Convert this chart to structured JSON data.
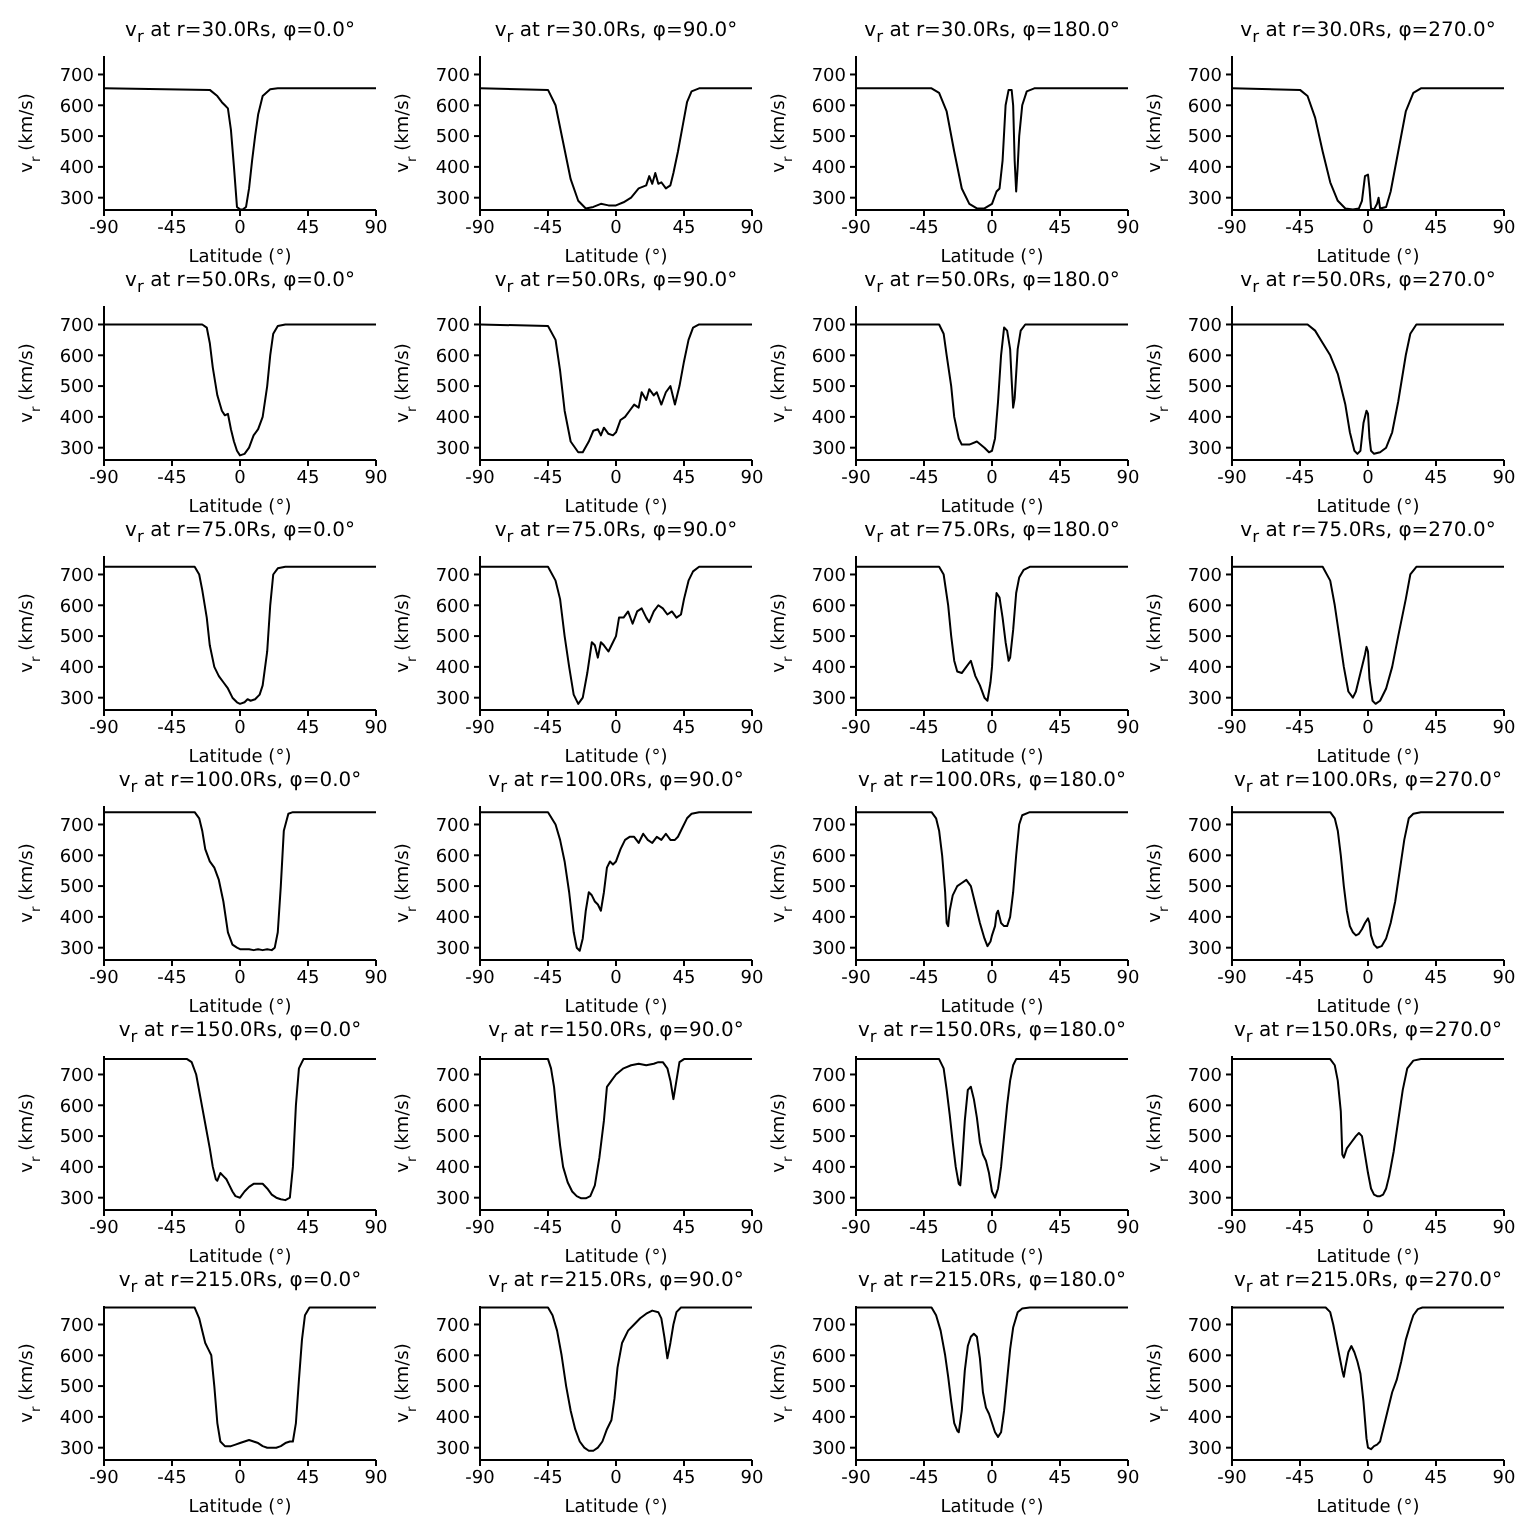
{
  "chart_data": [
    {
      "type": "line",
      "title": "v$_{r}$ at r=30.0Rs, φ=0.0°",
      "xlabel": "Latitude (°)",
      "ylabel": "v$_{r}$ (km/s)",
      "color": "#000000",
      "xlim": [
        -90,
        90
      ],
      "xticks": [
        -90,
        -45,
        0,
        45,
        90
      ],
      "ylim": [
        260,
        760
      ],
      "yticks": [
        300,
        400,
        500,
        600,
        700
      ],
      "x": [
        -90,
        -20,
        -15,
        -12,
        -10,
        -8,
        -6,
        -4,
        -2,
        0,
        2,
        4,
        6,
        8,
        10,
        12,
        15,
        20,
        25,
        90
      ],
      "values": [
        655,
        650,
        630,
        610,
        600,
        590,
        520,
        400,
        270,
        262,
        262,
        270,
        330,
        420,
        500,
        570,
        630,
        652,
        655,
        655
      ]
    },
    {
      "type": "line",
      "title": "v$_{r}$ at r=30.0Rs, φ=90.0°",
      "xlabel": "Latitude (°)",
      "ylabel": "v$_{r}$ (km/s)",
      "color": "#000000",
      "xlim": [
        -90,
        90
      ],
      "xticks": [
        -90,
        -45,
        0,
        45,
        90
      ],
      "ylim": [
        260,
        760
      ],
      "yticks": [
        300,
        400,
        500,
        600,
        700
      ],
      "x": [
        -90,
        -45,
        -40,
        -35,
        -30,
        -25,
        -20,
        -15,
        -10,
        -5,
        0,
        5,
        10,
        15,
        20,
        22,
        24,
        26,
        28,
        30,
        33,
        36,
        38,
        41,
        44,
        47,
        50,
        55,
        90
      ],
      "values": [
        655,
        650,
        600,
        480,
        360,
        290,
        265,
        270,
        280,
        275,
        275,
        285,
        300,
        330,
        340,
        370,
        345,
        380,
        345,
        350,
        330,
        340,
        380,
        450,
        530,
        610,
        645,
        655,
        655
      ]
    },
    {
      "type": "line",
      "title": "v$_{r}$ at r=30.0Rs, φ=180.0°",
      "xlabel": "Latitude (°)",
      "ylabel": "v$_{r}$ (km/s)",
      "color": "#000000",
      "xlim": [
        -90,
        90
      ],
      "xticks": [
        -90,
        -45,
        0,
        45,
        90
      ],
      "ylim": [
        260,
        760
      ],
      "yticks": [
        300,
        400,
        500,
        600,
        700
      ],
      "x": [
        -90,
        -40,
        -35,
        -30,
        -25,
        -20,
        -15,
        -10,
        -5,
        0,
        3,
        5,
        7,
        9,
        11,
        13,
        14,
        15,
        16,
        17,
        18,
        20,
        23,
        28,
        90
      ],
      "values": [
        655,
        655,
        640,
        580,
        450,
        330,
        280,
        265,
        265,
        280,
        320,
        330,
        420,
        600,
        650,
        650,
        600,
        420,
        320,
        400,
        500,
        600,
        645,
        655,
        655
      ]
    },
    {
      "type": "line",
      "title": "v$_{r}$ at r=30.0Rs, φ=270.0°",
      "xlabel": "Latitude (°)",
      "ylabel": "v$_{r}$ (km/s)",
      "color": "#000000",
      "xlim": [
        -90,
        90
      ],
      "xticks": [
        -90,
        -45,
        0,
        45,
        90
      ],
      "ylim": [
        260,
        760
      ],
      "yticks": [
        300,
        400,
        500,
        600,
        700
      ],
      "x": [
        -90,
        -45,
        -40,
        -35,
        -30,
        -25,
        -20,
        -15,
        -10,
        -6,
        -4,
        -2,
        0,
        1,
        2,
        4,
        6,
        7,
        8,
        12,
        15,
        20,
        25,
        30,
        35,
        90
      ],
      "values": [
        655,
        650,
        630,
        560,
        450,
        350,
        290,
        265,
        262,
        265,
        290,
        370,
        375,
        330,
        265,
        262,
        280,
        300,
        265,
        270,
        320,
        450,
        580,
        640,
        655,
        655
      ]
    },
    {
      "type": "line",
      "title": "v$_{r}$ at r=50.0Rs, φ=0.0°",
      "xlabel": "Latitude (°)",
      "ylabel": "v$_{r}$ (km/s)",
      "color": "#000000",
      "xlim": [
        -90,
        90
      ],
      "xticks": [
        -90,
        -45,
        0,
        45,
        90
      ],
      "ylim": [
        260,
        760
      ],
      "yticks": [
        300,
        400,
        500,
        600,
        700
      ],
      "x": [
        -90,
        -25,
        -22,
        -20,
        -18,
        -15,
        -12,
        -10,
        -8,
        -6,
        -4,
        -2,
        0,
        3,
        6,
        9,
        12,
        15,
        18,
        20,
        22,
        25,
        30,
        90
      ],
      "values": [
        700,
        700,
        690,
        640,
        560,
        470,
        420,
        405,
        410,
        360,
        320,
        290,
        275,
        280,
        300,
        340,
        360,
        400,
        500,
        600,
        670,
        695,
        700,
        700
      ]
    },
    {
      "type": "line",
      "title": "v$_{r}$ at r=50.0Rs, φ=90.0°",
      "xlabel": "Latitude (°)",
      "ylabel": "v$_{r}$ (km/s)",
      "color": "#000000",
      "xlim": [
        -90,
        90
      ],
      "xticks": [
        -90,
        -45,
        0,
        45,
        90
      ],
      "ylim": [
        260,
        760
      ],
      "yticks": [
        300,
        400,
        500,
        600,
        700
      ],
      "x": [
        -90,
        -45,
        -40,
        -37,
        -34,
        -30,
        -25,
        -22,
        -18,
        -15,
        -12,
        -10,
        -8,
        -5,
        -2,
        0,
        3,
        6,
        9,
        12,
        15,
        17,
        20,
        22,
        25,
        27,
        30,
        33,
        36,
        39,
        42,
        45,
        48,
        51,
        55,
        90
      ],
      "values": [
        700,
        695,
        650,
        550,
        420,
        320,
        285,
        285,
        320,
        355,
        360,
        340,
        365,
        345,
        340,
        350,
        390,
        400,
        420,
        440,
        430,
        480,
        455,
        490,
        470,
        480,
        440,
        480,
        500,
        440,
        500,
        580,
        650,
        690,
        700,
        700
      ]
    },
    {
      "type": "line",
      "title": "v$_{r}$ at r=50.0Rs, φ=180.0°",
      "xlabel": "Latitude (°)",
      "ylabel": "v$_{r}$ (km/s)",
      "color": "#000000",
      "xlim": [
        -90,
        90
      ],
      "xticks": [
        -90,
        -45,
        0,
        45,
        90
      ],
      "ylim": [
        260,
        760
      ],
      "yticks": [
        300,
        400,
        500,
        600,
        700
      ],
      "x": [
        -90,
        -35,
        -32,
        -30,
        -27,
        -25,
        -22,
        -20,
        -15,
        -10,
        -5,
        -2,
        0,
        2,
        4,
        6,
        8,
        10,
        12,
        13,
        14,
        15,
        17,
        19,
        22,
        90
      ],
      "values": [
        700,
        700,
        670,
        600,
        500,
        400,
        330,
        310,
        310,
        320,
        300,
        285,
        290,
        330,
        450,
        600,
        690,
        680,
        620,
        520,
        430,
        460,
        620,
        680,
        700,
        700
      ]
    },
    {
      "type": "line",
      "title": "v$_{r}$ at r=50.0Rs, φ=270.0°",
      "xlabel": "Latitude (°)",
      "ylabel": "v$_{r}$ (km/s)",
      "color": "#000000",
      "xlim": [
        -90,
        90
      ],
      "xticks": [
        -90,
        -45,
        0,
        45,
        90
      ],
      "ylim": [
        260,
        760
      ],
      "yticks": [
        300,
        400,
        500,
        600,
        700
      ],
      "x": [
        -90,
        -40,
        -35,
        -30,
        -25,
        -20,
        -15,
        -12,
        -9,
        -7,
        -5,
        -3,
        -1,
        0,
        1,
        2,
        4,
        8,
        12,
        16,
        20,
        25,
        28,
        32,
        90
      ],
      "values": [
        700,
        700,
        680,
        640,
        600,
        540,
        440,
        350,
        290,
        280,
        290,
        380,
        420,
        410,
        330,
        290,
        280,
        285,
        300,
        350,
        450,
        600,
        670,
        700,
        700
      ]
    },
    {
      "type": "line",
      "title": "v$_{r}$ at r=75.0Rs, φ=0.0°",
      "xlabel": "Latitude (°)",
      "ylabel": "v$_{r}$ (km/s)",
      "color": "#000000",
      "xlim": [
        -90,
        90
      ],
      "xticks": [
        -90,
        -45,
        0,
        45,
        90
      ],
      "ylim": [
        260,
        760
      ],
      "yticks": [
        300,
        400,
        500,
        600,
        700
      ],
      "x": [
        -90,
        -30,
        -27,
        -25,
        -22,
        -20,
        -17,
        -14,
        -11,
        -8,
        -5,
        -2,
        0,
        3,
        5,
        7,
        10,
        13,
        15,
        18,
        20,
        22,
        25,
        30,
        90
      ],
      "values": [
        725,
        725,
        700,
        650,
        560,
        470,
        400,
        370,
        350,
        330,
        300,
        285,
        280,
        285,
        295,
        290,
        295,
        310,
        340,
        450,
        600,
        700,
        720,
        725,
        725
      ]
    },
    {
      "type": "line",
      "title": "v$_{r}$ at r=75.0Rs, φ=90.0°",
      "xlabel": "Latitude (°)",
      "ylabel": "v$_{r}$ (km/s)",
      "color": "#000000",
      "xlim": [
        -90,
        90
      ],
      "xticks": [
        -90,
        -45,
        0,
        45,
        90
      ],
      "ylim": [
        260,
        760
      ],
      "yticks": [
        300,
        400,
        500,
        600,
        700
      ],
      "x": [
        -90,
        -45,
        -40,
        -37,
        -34,
        -31,
        -28,
        -25,
        -22,
        -19,
        -16,
        -14,
        -12,
        -10,
        -8,
        -5,
        -2,
        0,
        2,
        5,
        8,
        11,
        14,
        17,
        20,
        22,
        25,
        28,
        31,
        34,
        37,
        40,
        43,
        45,
        48,
        51,
        55,
        90
      ],
      "values": [
        725,
        725,
        680,
        620,
        500,
        400,
        310,
        280,
        300,
        380,
        480,
        470,
        430,
        480,
        470,
        450,
        480,
        500,
        560,
        560,
        580,
        540,
        580,
        590,
        560,
        545,
        580,
        600,
        590,
        570,
        580,
        560,
        570,
        620,
        680,
        710,
        725,
        725
      ]
    },
    {
      "type": "line",
      "title": "v$_{r}$ at r=75.0Rs, φ=180.0°",
      "xlabel": "Latitude (°)",
      "ylabel": "v$_{r}$ (km/s)",
      "color": "#000000",
      "xlim": [
        -90,
        90
      ],
      "xticks": [
        -90,
        -45,
        0,
        45,
        90
      ],
      "ylim": [
        260,
        760
      ],
      "yticks": [
        300,
        400,
        500,
        600,
        700
      ],
      "x": [
        -90,
        -35,
        -32,
        -29,
        -27,
        -25,
        -23,
        -20,
        -17,
        -14,
        -11,
        -8,
        -5,
        -3,
        -1,
        0,
        2,
        3,
        5,
        7,
        9,
        11,
        12,
        14,
        16,
        18,
        21,
        25,
        90
      ],
      "values": [
        725,
        725,
        700,
        600,
        500,
        420,
        385,
        380,
        400,
        420,
        370,
        340,
        300,
        290,
        350,
        400,
        580,
        640,
        625,
        560,
        480,
        420,
        430,
        520,
        640,
        690,
        715,
        725,
        725
      ]
    },
    {
      "type": "line",
      "title": "v$_{r}$ at r=75.0Rs, φ=270.0°",
      "xlabel": "Latitude (°)",
      "ylabel": "v$_{r}$ (km/s)",
      "color": "#000000",
      "xlim": [
        -90,
        90
      ],
      "xticks": [
        -90,
        -45,
        0,
        45,
        90
      ],
      "ylim": [
        260,
        760
      ],
      "yticks": [
        300,
        400,
        500,
        600,
        700
      ],
      "x": [
        -90,
        -30,
        -25,
        -22,
        -19,
        -16,
        -13,
        -10,
        -8,
        -5,
        -3,
        -2,
        -1,
        0,
        1,
        3,
        5,
        8,
        12,
        16,
        20,
        25,
        28,
        32,
        90
      ],
      "values": [
        725,
        725,
        680,
        600,
        500,
        400,
        320,
        300,
        320,
        380,
        420,
        440,
        465,
        450,
        360,
        290,
        280,
        290,
        330,
        400,
        500,
        620,
        700,
        725,
        725
      ]
    },
    {
      "type": "line",
      "title": "v$_{r}$ at r=100.0Rs, φ=0.0°",
      "xlabel": "Latitude (°)",
      "ylabel": "v$_{r}$ (km/s)",
      "color": "#000000",
      "xlim": [
        -90,
        90
      ],
      "xticks": [
        -90,
        -45,
        0,
        45,
        90
      ],
      "ylim": [
        260,
        760
      ],
      "yticks": [
        300,
        400,
        500,
        600,
        700
      ],
      "x": [
        -90,
        -30,
        -27,
        -25,
        -23,
        -20,
        -17,
        -14,
        -11,
        -8,
        -5,
        -2,
        0,
        3,
        6,
        9,
        12,
        15,
        18,
        21,
        23,
        25,
        27,
        29,
        32,
        35,
        90
      ],
      "values": [
        740,
        740,
        720,
        680,
        620,
        580,
        560,
        520,
        450,
        350,
        310,
        300,
        295,
        295,
        295,
        292,
        295,
        292,
        295,
        292,
        300,
        350,
        500,
        680,
        735,
        740,
        740
      ]
    },
    {
      "type": "line",
      "title": "v$_{r}$ at r=100.0Rs, φ=90.0°",
      "xlabel": "Latitude (°)",
      "ylabel": "v$_{r}$ (km/s)",
      "color": "#000000",
      "xlim": [
        -90,
        90
      ],
      "xticks": [
        -90,
        -45,
        0,
        45,
        90
      ],
      "ylim": [
        260,
        760
      ],
      "yticks": [
        300,
        400,
        500,
        600,
        700
      ],
      "x": [
        -90,
        -45,
        -40,
        -37,
        -34,
        -31,
        -28,
        -26,
        -24,
        -22,
        -20,
        -18,
        -16,
        -14,
        -12,
        -10,
        -8,
        -6,
        -4,
        -2,
        0,
        3,
        6,
        9,
        12,
        15,
        18,
        21,
        24,
        27,
        30,
        33,
        36,
        39,
        41,
        44,
        47,
        50,
        55,
        90
      ],
      "values": [
        740,
        740,
        700,
        650,
        580,
        480,
        350,
        300,
        290,
        330,
        420,
        480,
        470,
        450,
        440,
        420,
        480,
        560,
        580,
        570,
        580,
        620,
        650,
        660,
        660,
        640,
        670,
        650,
        640,
        660,
        650,
        670,
        650,
        650,
        660,
        690,
        720,
        735,
        740,
        740
      ]
    },
    {
      "type": "line",
      "title": "v$_{r}$ at r=100.0Rs, φ=180.0°",
      "xlabel": "Latitude (°)",
      "ylabel": "v$_{r}$ (km/s)",
      "color": "#000000",
      "xlim": [
        -90,
        90
      ],
      "xticks": [
        -90,
        -45,
        0,
        45,
        90
      ],
      "ylim": [
        260,
        760
      ],
      "yticks": [
        300,
        400,
        500,
        600,
        700
      ],
      "x": [
        -90,
        -40,
        -37,
        -35,
        -33,
        -31,
        -30,
        -29,
        -28,
        -26,
        -23,
        -20,
        -17,
        -14,
        -11,
        -8,
        -5,
        -3,
        -1,
        0,
        2,
        3,
        4,
        6,
        8,
        10,
        12,
        14,
        16,
        18,
        20,
        25,
        90
      ],
      "values": [
        740,
        740,
        720,
        680,
        600,
        480,
        380,
        370,
        420,
        470,
        500,
        510,
        520,
        500,
        440,
        380,
        330,
        305,
        320,
        340,
        370,
        410,
        420,
        380,
        370,
        370,
        400,
        480,
        600,
        700,
        730,
        740,
        740
      ]
    },
    {
      "type": "line",
      "title": "v$_{r}$ at r=100.0Rs, φ=270.0°",
      "xlabel": "Latitude (°)",
      "ylabel": "v$_{r}$ (km/s)",
      "color": "#000000",
      "xlim": [
        -90,
        90
      ],
      "xticks": [
        -90,
        -45,
        0,
        45,
        90
      ],
      "ylim": [
        260,
        760
      ],
      "yticks": [
        300,
        400,
        500,
        600,
        700
      ],
      "x": [
        -90,
        -25,
        -22,
        -20,
        -18,
        -16,
        -14,
        -12,
        -10,
        -8,
        -6,
        -4,
        -2,
        0,
        1,
        2,
        4,
        6,
        9,
        12,
        15,
        18,
        21,
        24,
        27,
        30,
        35,
        90
      ],
      "values": [
        740,
        740,
        720,
        680,
        600,
        500,
        420,
        370,
        350,
        340,
        345,
        360,
        380,
        395,
        380,
        340,
        310,
        300,
        305,
        330,
        380,
        450,
        550,
        650,
        720,
        735,
        740,
        740
      ]
    },
    {
      "type": "line",
      "title": "v$_{r}$ at r=150.0Rs, φ=0.0°",
      "xlabel": "Latitude (°)",
      "ylabel": "v$_{r}$ (km/s)",
      "color": "#000000",
      "xlim": [
        -90,
        90
      ],
      "xticks": [
        -90,
        -45,
        0,
        45,
        90
      ],
      "ylim": [
        260,
        760
      ],
      "yticks": [
        300,
        400,
        500,
        600,
        700
      ],
      "x": [
        -90,
        -35,
        -32,
        -29,
        -26,
        -23,
        -20,
        -18,
        -16,
        -15,
        -13,
        -11,
        -9,
        -7,
        -5,
        -3,
        0,
        3,
        6,
        9,
        12,
        15,
        18,
        21,
        24,
        27,
        30,
        33,
        35,
        37,
        39,
        42,
        90
      ],
      "values": [
        750,
        750,
        740,
        700,
        620,
        540,
        460,
        400,
        360,
        355,
        380,
        370,
        360,
        340,
        320,
        305,
        300,
        320,
        335,
        345,
        345,
        345,
        330,
        310,
        300,
        295,
        292,
        300,
        400,
        600,
        720,
        750,
        750
      ]
    },
    {
      "type": "line",
      "title": "v$_{r}$ at r=150.0Rs, φ=90.0°",
      "xlabel": "Latitude (°)",
      "ylabel": "v$_{r}$ (km/s)",
      "color": "#000000",
      "xlim": [
        -90,
        90
      ],
      "xticks": [
        -90,
        -45,
        0,
        45,
        90
      ],
      "ylim": [
        260,
        760
      ],
      "yticks": [
        300,
        400,
        500,
        600,
        700
      ],
      "x": [
        -90,
        -45,
        -43,
        -41,
        -39,
        -37,
        -35,
        -32,
        -29,
        -26,
        -23,
        -20,
        -17,
        -14,
        -11,
        -8,
        -6,
        -3,
        0,
        5,
        10,
        15,
        20,
        25,
        28,
        31,
        34,
        36,
        38,
        40,
        42,
        45,
        90
      ],
      "values": [
        750,
        750,
        720,
        660,
        560,
        470,
        400,
        350,
        320,
        305,
        298,
        298,
        305,
        340,
        430,
        550,
        660,
        680,
        700,
        720,
        730,
        735,
        730,
        735,
        740,
        740,
        720,
        680,
        620,
        680,
        740,
        750,
        750
      ]
    },
    {
      "type": "line",
      "title": "v$_{r}$ at r=150.0Rs, φ=180.0°",
      "xlabel": "Latitude (°)",
      "ylabel": "v$_{r}$ (km/s)",
      "color": "#000000",
      "xlim": [
        -90,
        90
      ],
      "xticks": [
        -90,
        -45,
        0,
        45,
        90
      ],
      "ylim": [
        260,
        760
      ],
      "yticks": [
        300,
        400,
        500,
        600,
        700
      ],
      "x": [
        -90,
        -35,
        -32,
        -30,
        -28,
        -26,
        -24,
        -22,
        -21,
        -20,
        -18,
        -16,
        -14,
        -12,
        -10,
        -8,
        -6,
        -4,
        -2,
        0,
        2,
        4,
        6,
        8,
        10,
        12,
        14,
        16,
        90
      ],
      "values": [
        750,
        750,
        720,
        650,
        570,
        480,
        400,
        345,
        340,
        400,
        550,
        650,
        660,
        620,
        560,
        480,
        440,
        420,
        380,
        320,
        300,
        330,
        400,
        500,
        600,
        680,
        730,
        750,
        750
      ]
    },
    {
      "type": "line",
      "title": "v$_{r}$ at r=150.0Rs, φ=270.0°",
      "xlabel": "Latitude (°)",
      "ylabel": "v$_{r}$ (km/s)",
      "color": "#000000",
      "xlim": [
        -90,
        90
      ],
      "xticks": [
        -90,
        -45,
        0,
        45,
        90
      ],
      "ylim": [
        260,
        760
      ],
      "yticks": [
        300,
        400,
        500,
        600,
        700
      ],
      "x": [
        -90,
        -25,
        -22,
        -20,
        -18,
        -17,
        -16,
        -14,
        -11,
        -8,
        -6,
        -4,
        -2,
        0,
        2,
        4,
        6,
        8,
        10,
        12,
        14,
        17,
        20,
        23,
        26,
        30,
        35,
        90
      ],
      "values": [
        750,
        750,
        730,
        680,
        580,
        440,
        430,
        460,
        480,
        500,
        510,
        500,
        440,
        380,
        330,
        310,
        305,
        305,
        310,
        330,
        370,
        450,
        550,
        650,
        720,
        745,
        750,
        750
      ]
    },
    {
      "type": "line",
      "title": "v$_{r}$ at r=215.0Rs, φ=0.0°",
      "xlabel": "Latitude (°)",
      "ylabel": "v$_{r}$ (km/s)",
      "color": "#000000",
      "xlim": [
        -90,
        90
      ],
      "xticks": [
        -90,
        -45,
        0,
        45,
        90
      ],
      "ylim": [
        260,
        760
      ],
      "yticks": [
        300,
        400,
        500,
        600,
        700
      ],
      "x": [
        -90,
        -30,
        -27,
        -25,
        -23,
        -21,
        -19,
        -17,
        -15,
        -13,
        -10,
        -6,
        -3,
        0,
        3,
        6,
        9,
        12,
        15,
        18,
        21,
        24,
        27,
        30,
        33,
        35,
        37,
        39,
        41,
        43,
        46,
        90
      ],
      "values": [
        755,
        755,
        720,
        680,
        640,
        620,
        600,
        500,
        380,
        320,
        305,
        305,
        310,
        315,
        320,
        325,
        320,
        315,
        305,
        300,
        300,
        300,
        305,
        315,
        320,
        320,
        380,
        520,
        650,
        730,
        755,
        755
      ]
    },
    {
      "type": "line",
      "title": "v$_{r}$ at r=215.0Rs, φ=90.0°",
      "xlabel": "Latitude (°)",
      "ylabel": "v$_{r}$ (km/s)",
      "color": "#000000",
      "xlim": [
        -90,
        90
      ],
      "xticks": [
        -90,
        -45,
        0,
        45,
        90
      ],
      "ylim": [
        260,
        760
      ],
      "yticks": [
        300,
        400,
        500,
        600,
        700
      ],
      "x": [
        -90,
        -45,
        -42,
        -39,
        -36,
        -33,
        -30,
        -27,
        -24,
        -21,
        -18,
        -15,
        -12,
        -9,
        -6,
        -3,
        -1,
        1,
        4,
        8,
        12,
        16,
        20,
        24,
        28,
        30,
        32,
        34,
        36,
        38,
        40,
        43,
        90
      ],
      "values": [
        755,
        755,
        730,
        680,
        600,
        500,
        420,
        360,
        320,
        300,
        290,
        290,
        300,
        320,
        360,
        390,
        460,
        560,
        640,
        680,
        700,
        720,
        735,
        745,
        740,
        720,
        660,
        590,
        640,
        700,
        740,
        755,
        755
      ]
    },
    {
      "type": "line",
      "title": "v$_{r}$ at r=215.0Rs, φ=180.0°",
      "xlabel": "Latitude (°)",
      "ylabel": "v$_{r}$ (km/s)",
      "color": "#000000",
      "xlim": [
        -90,
        90
      ],
      "xticks": [
        -90,
        -45,
        0,
        45,
        90
      ],
      "ylim": [
        260,
        760
      ],
      "yticks": [
        300,
        400,
        500,
        600,
        700
      ],
      "x": [
        -90,
        -40,
        -37,
        -34,
        -31,
        -29,
        -27,
        -25,
        -23,
        -22,
        -20,
        -18,
        -16,
        -14,
        -12,
        -10,
        -8,
        -6,
        -4,
        -2,
        0,
        2,
        4,
        6,
        8,
        10,
        12,
        14,
        17,
        20,
        25,
        90
      ],
      "values": [
        755,
        755,
        730,
        680,
        600,
        530,
        450,
        380,
        355,
        350,
        420,
        550,
        630,
        660,
        670,
        660,
        590,
        480,
        430,
        410,
        380,
        350,
        335,
        350,
        420,
        520,
        620,
        690,
        740,
        752,
        755,
        755
      ]
    },
    {
      "type": "line",
      "title": "v$_{r}$ at r=215.0Rs, φ=270.0°",
      "xlabel": "Latitude (°)",
      "ylabel": "v$_{r}$ (km/s)",
      "color": "#000000",
      "xlim": [
        -90,
        90
      ],
      "xticks": [
        -90,
        -45,
        0,
        45,
        90
      ],
      "ylim": [
        260,
        760
      ],
      "yticks": [
        300,
        400,
        500,
        600,
        700
      ],
      "x": [
        -90,
        -28,
        -25,
        -23,
        -21,
        -19,
        -17,
        -16,
        -15,
        -13,
        -11,
        -9,
        -7,
        -5,
        -3,
        -1,
        0,
        2,
        4,
        6,
        8,
        10,
        13,
        16,
        19,
        22,
        25,
        28,
        30,
        33,
        36,
        90
      ],
      "values": [
        755,
        755,
        740,
        700,
        650,
        600,
        550,
        530,
        560,
        610,
        630,
        610,
        580,
        540,
        450,
        330,
        300,
        295,
        305,
        310,
        320,
        360,
        420,
        480,
        520,
        580,
        650,
        700,
        730,
        750,
        755,
        755
      ]
    }
  ]
}
